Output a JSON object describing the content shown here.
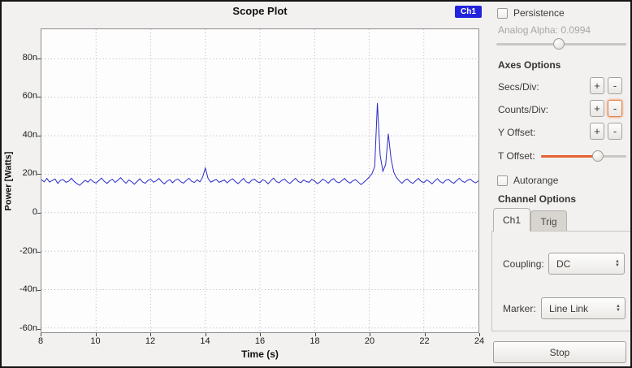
{
  "chart_data": {
    "type": "line",
    "title": "Scope Plot",
    "xlabel": "Time (s)",
    "ylabel": "Power [Watts]",
    "xlim": [
      8,
      24
    ],
    "ylim": [
      -62.2,
      95.4
    ],
    "xticks": [
      8,
      10,
      12,
      14,
      16,
      18,
      20,
      22,
      24
    ],
    "yticks": [
      {
        "label": "80n",
        "value": 80
      },
      {
        "label": "60n",
        "value": 60
      },
      {
        "label": "40n",
        "value": 40
      },
      {
        "label": "20n",
        "value": 20
      },
      {
        "label": "0",
        "value": 0
      },
      {
        "label": "-20n",
        "value": -20
      },
      {
        "label": "-40n",
        "value": -40
      },
      {
        "label": "-60n",
        "value": -60
      }
    ],
    "grid": "dotted",
    "legend": {
      "position": "top-right",
      "bg": "#2323dd",
      "text_color": "#ffffff"
    },
    "y_unit": "nanowatts",
    "series": [
      {
        "name": "Ch1",
        "color": "#2a2ac8",
        "x_start": 8,
        "x_step": 0.1,
        "values": [
          17.2,
          16.0,
          17.8,
          15.9,
          16.8,
          17.5,
          15.2,
          16.9,
          17.1,
          15.8,
          16.4,
          17.9,
          16.2,
          15.1,
          14.2,
          15.6,
          16.8,
          15.9,
          17.3,
          16.1,
          15.4,
          16.7,
          18.0,
          16.3,
          15.2,
          16.6,
          17.4,
          15.7,
          16.9,
          18.2,
          16.5,
          15.3,
          17.0,
          16.1,
          14.8,
          16.2,
          17.6,
          16.0,
          15.3,
          16.8,
          17.3,
          15.9,
          16.5,
          17.8,
          16.2,
          15.0,
          16.4,
          17.2,
          15.6,
          16.9,
          17.5,
          16.1,
          15.4,
          16.7,
          17.9,
          16.3,
          15.7,
          17.1,
          16.0,
          18.4,
          23.2,
          17.8,
          15.9,
          16.6,
          17.3,
          15.8,
          16.4,
          17.0,
          15.5,
          16.8,
          17.6,
          16.2,
          15.1,
          16.5,
          17.8,
          16.0,
          15.4,
          16.9,
          17.4,
          16.1,
          15.6,
          17.2,
          16.4,
          15.0,
          16.7,
          18.0,
          16.2,
          15.5,
          16.8,
          17.5,
          16.0,
          15.2,
          16.6,
          17.9,
          16.3,
          15.6,
          17.0,
          16.2,
          15.8,
          17.3,
          16.5,
          15.1,
          16.0,
          17.4,
          16.6,
          15.3,
          16.9,
          17.7,
          16.1,
          15.5,
          16.7,
          17.8,
          16.2,
          15.4,
          16.6,
          17.2,
          15.9,
          14.6,
          15.8,
          17.0,
          18.5,
          20.3,
          24.0,
          57.0,
          30.0,
          21.5,
          25.0,
          41.0,
          28.0,
          21.0,
          18.2,
          16.5,
          15.3,
          16.8,
          17.5,
          16.0,
          15.2,
          16.6,
          17.8,
          16.3,
          15.6,
          17.0,
          16.2,
          15.0,
          16.5,
          17.7,
          16.1,
          15.4,
          16.8,
          17.3,
          16.0,
          15.3,
          16.7,
          17.9,
          16.4,
          15.7,
          16.9,
          17.4,
          16.2,
          15.5,
          16.6
        ]
      }
    ]
  },
  "controls": {
    "persistence": {
      "label": "Persistence",
      "checked": false
    },
    "analog_alpha": {
      "label": "Analog Alpha: 0.0994",
      "value": 0.0994,
      "enabled": false,
      "slider_position": 0.48
    },
    "axes_heading": "Axes Options",
    "secs_div": {
      "label": "Secs/Div:",
      "plus": "+",
      "minus": "-"
    },
    "counts_div": {
      "label": "Counts/Div:",
      "plus": "+",
      "minus": "-",
      "minus_focused": true
    },
    "y_offset": {
      "label": "Y Offset:",
      "plus": "+",
      "minus": "-"
    },
    "t_offset": {
      "label": "T Offset:",
      "slider_position": 0.67,
      "accent_color": "#e66233"
    },
    "autorange": {
      "label": "Autorange",
      "checked": false
    },
    "channel_heading": "Channel Options",
    "tabs": [
      {
        "label": "Ch1",
        "active": true
      },
      {
        "label": "Trig",
        "active": false
      }
    ],
    "coupling": {
      "label": "Coupling:",
      "value": "DC"
    },
    "marker": {
      "label": "Marker:",
      "value": "Line Link"
    },
    "stop_label": "Stop"
  }
}
